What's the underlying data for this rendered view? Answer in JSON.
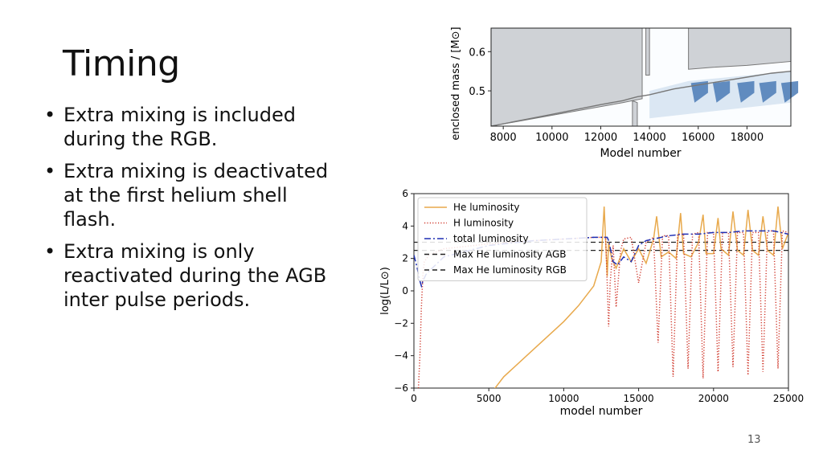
{
  "slide": {
    "title": "Timing",
    "bullets": [
      "Extra mixing is included during the RGB.",
      "Extra mixing is deactivated at the first helium shell flash.",
      "Extra mixing is only reactivated during the AGB inter pulse periods."
    ],
    "page_number": "13"
  },
  "chart_data": [
    {
      "type": "area",
      "title": "",
      "xlabel": "Model number",
      "ylabel": "enclosed mass / [M⊙]",
      "xlim": [
        7500,
        19800
      ],
      "ylim": [
        0.41,
        0.66
      ],
      "xticks": [
        "8000",
        "10000",
        "12000",
        "14000",
        "16000",
        "18000"
      ],
      "yticks": [
        "0.5",
        "0.6"
      ],
      "colors": {
        "convective": "#cfd2d6",
        "mixing_dark": "#4a7ab5",
        "mixing_light": "#dbe7f3",
        "boundary": "#777777"
      },
      "series": [
        {
          "x": [
            7500,
            10000,
            12000,
            12900,
            13200,
            13500,
            14000,
            15000,
            16000,
            17000,
            18000,
            19000,
            19800
          ],
          "values": [
            0.41,
            0.44,
            0.465,
            0.475,
            0.48,
            0.485,
            0.49,
            0.505,
            0.515,
            0.525,
            0.535,
            0.545,
            0.55
          ]
        }
      ]
    },
    {
      "type": "line",
      "title": "",
      "xlabel": "model number",
      "ylabel": "log(L/L⊙)",
      "xlim": [
        0,
        25000
      ],
      "ylim": [
        -6,
        6
      ],
      "xticks": [
        "0",
        "5000",
        "10000",
        "15000",
        "20000",
        "25000"
      ],
      "yticks": [
        "−6",
        "−4",
        "−2",
        "0",
        "2",
        "4",
        "6"
      ],
      "legend_position": "top-left",
      "series": [
        {
          "name": "He luminosity",
          "color": "#e8a94c",
          "style": "solid",
          "x": [
            5000,
            6000,
            8000,
            10000,
            11000,
            12000,
            12500,
            12700,
            12900,
            13000,
            13200,
            13500,
            14000,
            14500,
            15000,
            15500,
            16000,
            16200,
            16500,
            17000,
            17500,
            17800,
            18000,
            18500,
            19000,
            19300,
            19500,
            20000,
            20300,
            20500,
            21000,
            21300,
            21600,
            22000,
            22300,
            22600,
            23000,
            23300,
            23600,
            24000,
            24300,
            24600,
            25000
          ],
          "values": [
            -6.5,
            -5.3,
            -3.6,
            -1.9,
            -0.9,
            0.3,
            1.8,
            5.2,
            0.9,
            3.0,
            2.0,
            1.4,
            2.6,
            1.8,
            2.6,
            1.7,
            3.2,
            4.6,
            2.1,
            2.4,
            2.0,
            4.8,
            2.3,
            2.1,
            3.0,
            4.7,
            2.3,
            2.3,
            4.5,
            2.6,
            2.2,
            4.9,
            2.5,
            2.2,
            5.0,
            2.5,
            2.2,
            4.6,
            2.5,
            2.2,
            5.2,
            2.6,
            3.6
          ]
        },
        {
          "name": "H luminosity",
          "color": "#d03b2f",
          "style": "dotted",
          "x": [
            300,
            400,
            500,
            600,
            700,
            1000,
            2000,
            5000,
            8000,
            10000,
            12000,
            12800,
            13000,
            13100,
            13300,
            13500,
            13800,
            14000,
            14500,
            15000,
            15500,
            16000,
            16300,
            16600,
            17000,
            17300,
            17600,
            18000,
            18300,
            18600,
            19000,
            19300,
            19600,
            20000,
            20300,
            20600,
            21000,
            21300,
            21600,
            22000,
            22300,
            22600,
            23000,
            23300,
            23600,
            24000,
            24300,
            24600,
            25000
          ],
          "values": [
            -6,
            -4,
            -1,
            1.0,
            1.8,
            2.2,
            2.6,
            2.9,
            3.1,
            3.2,
            3.3,
            3.3,
            -2.2,
            0.5,
            2.8,
            -1.0,
            2.5,
            3.2,
            3.3,
            0.5,
            3.0,
            3.3,
            -3.2,
            3.4,
            3.4,
            -5.3,
            3.5,
            3.5,
            -4.8,
            3.5,
            3.6,
            -5.4,
            3.6,
            3.6,
            -5.0,
            3.6,
            3.6,
            -4.7,
            3.6,
            3.6,
            -5.2,
            3.6,
            3.6,
            -5.0,
            3.7,
            3.7,
            -4.8,
            3.7,
            3.6
          ]
        },
        {
          "name": "total luminosity",
          "color": "#1f2fb4",
          "style": "dashdot",
          "x": [
            0,
            200,
            400,
            500,
            600,
            800,
            1000,
            2000,
            5000,
            8000,
            10000,
            12000,
            12900,
            13000,
            13300,
            13600,
            14000,
            14500,
            15000,
            15500,
            16000,
            17000,
            18000,
            19000,
            20000,
            21000,
            22000,
            23000,
            24000,
            25000
          ],
          "values": [
            2.2,
            1.5,
            0.6,
            0.3,
            0.6,
            1.0,
            1.2,
            2.1,
            2.8,
            3.1,
            3.2,
            3.3,
            3.3,
            3.1,
            1.8,
            1.6,
            2.1,
            1.8,
            2.8,
            3.1,
            3.2,
            3.4,
            3.5,
            3.5,
            3.6,
            3.6,
            3.7,
            3.7,
            3.7,
            3.5
          ]
        },
        {
          "name": "Max He luminosity AGB",
          "color": "#222222",
          "style": "dashed",
          "x": [
            0,
            25000
          ],
          "values": [
            3.0,
            3.0
          ]
        },
        {
          "name": "Max He luminosity RGB",
          "color": "#222222",
          "style": "dashed",
          "x": [
            0,
            25000
          ],
          "values": [
            2.5,
            2.5
          ]
        }
      ]
    }
  ]
}
